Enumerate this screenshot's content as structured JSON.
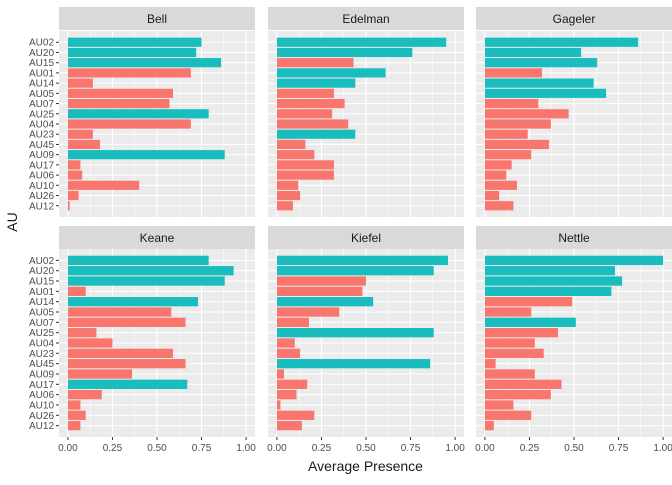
{
  "chart_data": {
    "type": "bar",
    "orientation": "horizontal",
    "xlabel": "Average Presence",
    "ylabel": "AU",
    "xlim": [
      0,
      1
    ],
    "x_ticks": [
      "0.00",
      "0.25",
      "0.50",
      "0.75",
      "1.00"
    ],
    "categories": [
      "AU02",
      "AU20",
      "AU15",
      "AU01",
      "AU14",
      "AU05",
      "AU07",
      "AU25",
      "AU04",
      "AU23",
      "AU45",
      "AU09",
      "AU17",
      "AU06",
      "AU10",
      "AU26",
      "AU12"
    ],
    "grid": true,
    "legend": "none",
    "colors": {
      "teal": "#1ABDBD",
      "salmon": "#F8766D",
      "panel_bg": "#EBEBEB",
      "strip_bg": "#D9D9D9",
      "grid": "#FFFFFF"
    },
    "facets": [
      {
        "name": "Bell",
        "values": [
          0.75,
          0.72,
          0.86,
          0.69,
          0.14,
          0.59,
          0.57,
          0.79,
          0.69,
          0.14,
          0.18,
          0.88,
          0.07,
          0.08,
          0.4,
          0.06,
          0.01
        ],
        "colors": [
          "teal",
          "teal",
          "teal",
          "salmon",
          "salmon",
          "salmon",
          "salmon",
          "teal",
          "salmon",
          "salmon",
          "salmon",
          "teal",
          "salmon",
          "salmon",
          "salmon",
          "salmon",
          "salmon"
        ]
      },
      {
        "name": "Edelman",
        "values": [
          0.95,
          0.76,
          0.43,
          0.61,
          0.44,
          0.32,
          0.38,
          0.31,
          0.4,
          0.44,
          0.16,
          0.21,
          0.32,
          0.32,
          0.12,
          0.13,
          0.09
        ],
        "colors": [
          "teal",
          "teal",
          "salmon",
          "teal",
          "teal",
          "salmon",
          "salmon",
          "salmon",
          "salmon",
          "teal",
          "salmon",
          "salmon",
          "salmon",
          "salmon",
          "salmon",
          "salmon",
          "salmon"
        ]
      },
      {
        "name": "Gageler",
        "values": [
          0.86,
          0.54,
          0.63,
          0.32,
          0.61,
          0.68,
          0.3,
          0.47,
          0.37,
          0.24,
          0.36,
          0.26,
          0.15,
          0.12,
          0.18,
          0.08,
          0.16
        ],
        "colors": [
          "teal",
          "teal",
          "teal",
          "salmon",
          "teal",
          "teal",
          "salmon",
          "salmon",
          "salmon",
          "salmon",
          "salmon",
          "salmon",
          "salmon",
          "salmon",
          "salmon",
          "salmon",
          "salmon"
        ]
      },
      {
        "name": "Keane",
        "values": [
          0.79,
          0.93,
          0.88,
          0.1,
          0.73,
          0.58,
          0.66,
          0.16,
          0.25,
          0.59,
          0.66,
          0.36,
          0.67,
          0.19,
          0.07,
          0.1,
          0.07
        ],
        "colors": [
          "teal",
          "teal",
          "teal",
          "salmon",
          "teal",
          "salmon",
          "salmon",
          "salmon",
          "salmon",
          "salmon",
          "salmon",
          "salmon",
          "teal",
          "salmon",
          "salmon",
          "salmon",
          "salmon"
        ]
      },
      {
        "name": "Kiefel",
        "values": [
          0.96,
          0.88,
          0.5,
          0.48,
          0.54,
          0.35,
          0.18,
          0.88,
          0.1,
          0.13,
          0.86,
          0.04,
          0.17,
          0.11,
          0.02,
          0.21,
          0.14
        ],
        "colors": [
          "teal",
          "teal",
          "salmon",
          "salmon",
          "teal",
          "salmon",
          "salmon",
          "teal",
          "salmon",
          "salmon",
          "teal",
          "salmon",
          "salmon",
          "salmon",
          "salmon",
          "salmon",
          "salmon"
        ]
      },
      {
        "name": "Nettle",
        "values": [
          1.0,
          0.73,
          0.77,
          0.71,
          0.49,
          0.26,
          0.51,
          0.41,
          0.28,
          0.33,
          0.06,
          0.28,
          0.43,
          0.37,
          0.16,
          0.26,
          0.05
        ],
        "colors": [
          "teal",
          "teal",
          "teal",
          "teal",
          "salmon",
          "salmon",
          "teal",
          "salmon",
          "salmon",
          "salmon",
          "salmon",
          "salmon",
          "salmon",
          "salmon",
          "salmon",
          "salmon",
          "salmon"
        ]
      }
    ]
  }
}
